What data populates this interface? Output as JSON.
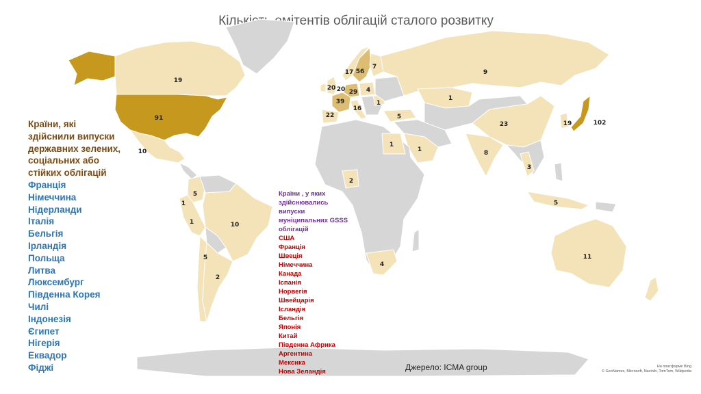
{
  "title": "Кількість емітентів облігацій сталого розвитку",
  "legend_colors": {
    "none": "#d6d6d6",
    "low": "#f4e3b9",
    "mid": "#dcbd72",
    "high": "#c6991e"
  },
  "map": {
    "labels": [
      {
        "country": "Canada",
        "value": "19"
      },
      {
        "country": "USA",
        "value": "91"
      },
      {
        "country": "Mexico",
        "value": "10"
      },
      {
        "country": "Colombia",
        "value": "5"
      },
      {
        "country": "Ecuador",
        "value": "1"
      },
      {
        "country": "Peru",
        "value": "1"
      },
      {
        "country": "Brazil",
        "value": "10"
      },
      {
        "country": "Chile",
        "value": "5"
      },
      {
        "country": "Argentina",
        "value": "2"
      },
      {
        "country": "Norway",
        "value": "17"
      },
      {
        "country": "Sweden",
        "value": "56"
      },
      {
        "country": "Finland",
        "value": "7"
      },
      {
        "country": "United Kingdom",
        "value": "20"
      },
      {
        "country": "Netherlands",
        "value": "20"
      },
      {
        "country": "Germany",
        "value": "29"
      },
      {
        "country": "Poland",
        "value": "4"
      },
      {
        "country": "France",
        "value": "39"
      },
      {
        "country": "Italy",
        "value": "16"
      },
      {
        "country": "Spain",
        "value": "22"
      },
      {
        "country": "Romania",
        "value": "1"
      },
      {
        "country": "Turkey",
        "value": "5"
      },
      {
        "country": "Russia",
        "value": "9"
      },
      {
        "country": "Kazakhstan",
        "value": "1"
      },
      {
        "country": "China",
        "value": "23"
      },
      {
        "country": "South Korea",
        "value": "19"
      },
      {
        "country": "Japan",
        "value": "102"
      },
      {
        "country": "Egypt",
        "value": "1"
      },
      {
        "country": "Saudi Arabia",
        "value": "1"
      },
      {
        "country": "India",
        "value": "8"
      },
      {
        "country": "Thailand",
        "value": "3"
      },
      {
        "country": "Nigeria",
        "value": "2"
      },
      {
        "country": "Indonesia",
        "value": "5"
      },
      {
        "country": "South Africa",
        "value": "4"
      },
      {
        "country": "Australia",
        "value": "11"
      }
    ]
  },
  "sovereign_list": {
    "heading": [
      "Країни, які",
      "здійснили випуски",
      "державних зелених,",
      "соціальних або",
      "стійких облігацій"
    ],
    "items": [
      "Франція",
      "Німеччина",
      "Нідерланди",
      "Італія",
      "Бельгія",
      "Ірландія",
      "Польща",
      "Литва",
      "Люксембург",
      "Південна Корея",
      "Чилі",
      "Індонезія",
      "Єгипет",
      "Нігерія",
      "Еквадор",
      "Фіджі"
    ]
  },
  "municipal_list": {
    "heading": [
      "Країни  , у яких",
      "здійснювались",
      "випуски",
      "муніципальних   GSSS",
      "облігацій"
    ],
    "items": [
      "США",
      "Франція",
      "Швеція",
      "Німеччина",
      "Канада",
      "Іспанія",
      "Норвегія",
      "Швейцарія",
      "Ісландія",
      "Бельгія",
      "Японія",
      "Китай",
      "Південна  Африка",
      "Аргентина",
      "Мексика",
      "Нова  Зеландія"
    ]
  },
  "source": "Джерело: ICMA group",
  "credit": [
    "На платформе Bing",
    "© GeoNames, Microsoft, Navinfo, TomTom, Wikipedia"
  ]
}
